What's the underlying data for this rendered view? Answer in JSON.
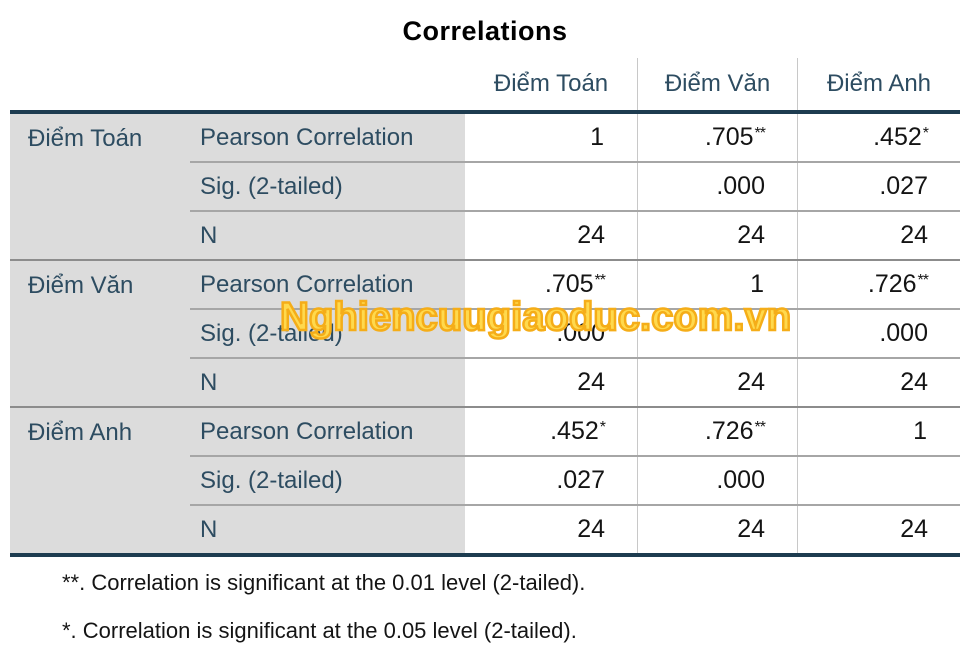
{
  "title": "Correlations",
  "watermark": "Nghiencuugiaoduc.com.vn",
  "colors": {
    "header_label_text": "#2d4c61",
    "value_text": "#141414",
    "stub_background": "#dcdcdc",
    "thick_border": "#1d3c50",
    "row_line": "#a6a6a6",
    "section_line": "#8c8c8c",
    "column_line": "#c8c8c8",
    "watermark_fill": "#ffd94d",
    "watermark_stroke": "#f5ad18"
  },
  "table": {
    "column_headers": [
      "Điểm Toán",
      "Điểm Văn",
      "Điểm Anh"
    ],
    "stat_labels": [
      "Pearson Correlation",
      "Sig. (2-tailed)",
      "N"
    ],
    "sections": [
      {
        "label": "Điểm Toán",
        "rows": [
          {
            "cells": [
              {
                "v": "1",
                "sup": ""
              },
              {
                "v": ".705",
                "sup": "**"
              },
              {
                "v": ".452",
                "sup": "*"
              }
            ]
          },
          {
            "cells": [
              {
                "v": "",
                "sup": ""
              },
              {
                "v": ".000",
                "sup": ""
              },
              {
                "v": ".027",
                "sup": ""
              }
            ]
          },
          {
            "cells": [
              {
                "v": "24",
                "sup": ""
              },
              {
                "v": "24",
                "sup": ""
              },
              {
                "v": "24",
                "sup": ""
              }
            ]
          }
        ]
      },
      {
        "label": "Điểm Văn",
        "rows": [
          {
            "cells": [
              {
                "v": ".705",
                "sup": "**"
              },
              {
                "v": "1",
                "sup": ""
              },
              {
                "v": ".726",
                "sup": "**"
              }
            ]
          },
          {
            "cells": [
              {
                "v": ".000",
                "sup": ""
              },
              {
                "v": "",
                "sup": ""
              },
              {
                "v": ".000",
                "sup": ""
              }
            ]
          },
          {
            "cells": [
              {
                "v": "24",
                "sup": ""
              },
              {
                "v": "24",
                "sup": ""
              },
              {
                "v": "24",
                "sup": ""
              }
            ]
          }
        ]
      },
      {
        "label": "Điểm Anh",
        "rows": [
          {
            "cells": [
              {
                "v": ".452",
                "sup": "*"
              },
              {
                "v": ".726",
                "sup": "**"
              },
              {
                "v": "1",
                "sup": ""
              }
            ]
          },
          {
            "cells": [
              {
                "v": ".027",
                "sup": ""
              },
              {
                "v": ".000",
                "sup": ""
              },
              {
                "v": "",
                "sup": ""
              }
            ]
          },
          {
            "cells": [
              {
                "v": "24",
                "sup": ""
              },
              {
                "v": "24",
                "sup": ""
              },
              {
                "v": "24",
                "sup": ""
              }
            ]
          }
        ]
      }
    ]
  },
  "footnotes": [
    "**. Correlation is significant at the 0.01 level (2-tailed).",
    "*. Correlation is significant at the 0.05 level (2-tailed)."
  ],
  "chart_data": {
    "type": "table",
    "title": "Correlations",
    "variables": [
      "Điểm Toán",
      "Điểm Văn",
      "Điểm Anh"
    ],
    "statistics": [
      "Pearson Correlation",
      "Sig. (2-tailed)",
      "N"
    ],
    "pearson_correlation": [
      [
        1,
        0.705,
        0.452
      ],
      [
        0.705,
        1,
        0.726
      ],
      [
        0.452,
        0.726,
        1
      ]
    ],
    "sig_2_tailed": [
      [
        null,
        0.0,
        0.027
      ],
      [
        0.0,
        null,
        0.0
      ],
      [
        0.027,
        0.0,
        null
      ]
    ],
    "n": [
      [
        24,
        24,
        24
      ],
      [
        24,
        24,
        24
      ],
      [
        24,
        24,
        24
      ]
    ],
    "significance_flags": [
      [
        "",
        "**",
        "*"
      ],
      [
        "**",
        "",
        "**"
      ],
      [
        "*",
        "**",
        ""
      ]
    ],
    "footnotes": [
      "**. Correlation is significant at the 0.01 level (2-tailed).",
      "*. Correlation is significant at the 0.05 level (2-tailed)."
    ]
  }
}
